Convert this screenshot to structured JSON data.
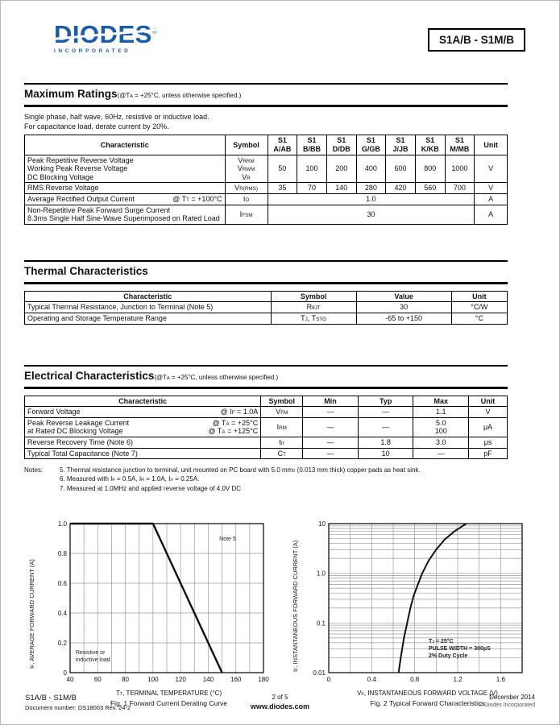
{
  "header": {
    "brand": "DIODES",
    "brand_sub": "INCORPORATED",
    "reg_mark": "®",
    "part_number": "S1A/B - S1M/B",
    "brand_color": "#1b5ca8"
  },
  "max_ratings": {
    "title": "Maximum Ratings",
    "subtitle_rich": [
      [
        "n",
        "(@T"
      ],
      [
        "s",
        "A"
      ],
      [
        "n",
        " = +25°C, unless otherwise specified.)"
      ]
    ],
    "intro_lines": [
      "Single phase, half wave, 60Hz, resistive or inductive load.",
      "For capacitance load, derate current by 20%."
    ],
    "headers": {
      "characteristic": "Characteristic",
      "symbol": "Symbol",
      "unit": "Unit",
      "parts": [
        {
          "top": "S1",
          "bot": "A/AB"
        },
        {
          "top": "S1",
          "bot": "B/BB"
        },
        {
          "top": "S1",
          "bot": "D/DB"
        },
        {
          "top": "S1",
          "bot": "G/GB"
        },
        {
          "top": "S1",
          "bot": "J/JB"
        },
        {
          "top": "S1",
          "bot": "K/KB"
        },
        {
          "top": "S1",
          "bot": "M/MB"
        }
      ]
    },
    "rows": [
      {
        "char_lines": [
          "Peak Repetitive Reverse Voltage",
          "Working Peak Reverse Voltage",
          "DC Blocking Voltage"
        ],
        "symbols_rich": [
          [
            [
              "n",
              "V"
            ],
            [
              "s",
              "RRM"
            ]
          ],
          [
            [
              "n",
              "V"
            ],
            [
              "s",
              "RWM"
            ]
          ],
          [
            [
              "n",
              "V"
            ],
            [
              "s",
              "R"
            ]
          ]
        ],
        "values": [
          "50",
          "100",
          "200",
          "400",
          "600",
          "800",
          "1000"
        ],
        "unit": "V"
      },
      {
        "char": "RMS Reverse Voltage",
        "symbol_rich": [
          [
            "n",
            "V"
          ],
          [
            "s",
            "R(RMS)"
          ]
        ],
        "values": [
          "35",
          "70",
          "140",
          "280",
          "420",
          "560",
          "700"
        ],
        "unit": "V"
      },
      {
        "char": "Average Rectified Output Current",
        "cond_rich": [
          [
            "n",
            "@ T"
          ],
          [
            "s",
            "T"
          ],
          [
            "n",
            " = +100°C"
          ]
        ],
        "symbol_rich": [
          [
            "n",
            "I"
          ],
          [
            "s",
            "O"
          ]
        ],
        "value_span": "1.0",
        "unit": "A"
      },
      {
        "char_lines": [
          "Non-Repetitive Peak Forward Surge Current",
          "8.3ms Single Half Sine-Wave Superimposed on Rated Load"
        ],
        "symbol_rich": [
          [
            "n",
            "I"
          ],
          [
            "s",
            "FSM"
          ]
        ],
        "value_span": "30",
        "unit": "A"
      }
    ]
  },
  "thermal": {
    "title": "Thermal Characteristics",
    "headers": [
      "Characteristic",
      "Symbol",
      "Value",
      "Unit"
    ],
    "rows": [
      {
        "char": "Typical Thermal Resistance, Junction to Terminal (Note 5)",
        "symbol_rich": [
          [
            "n",
            "R"
          ],
          [
            "s",
            "θJT"
          ]
        ],
        "value": "30",
        "unit": "°C/W"
      },
      {
        "char": "Operating and Storage Temperature Range",
        "symbol_rich": [
          [
            "n",
            "T"
          ],
          [
            "s",
            "J"
          ],
          [
            "n",
            ", T"
          ],
          [
            "s",
            "STG"
          ]
        ],
        "value": "-65 to +150",
        "unit": "°C"
      }
    ]
  },
  "electrical": {
    "title": "Electrical Characteristics",
    "subtitle_rich": [
      [
        "n",
        "(@T"
      ],
      [
        "s",
        "A"
      ],
      [
        "n",
        " = +25°C, unless otherwise specified.)"
      ]
    ],
    "headers": [
      "Characteristic",
      "Symbol",
      "Min",
      "Typ",
      "Max",
      "Unit"
    ],
    "rows": [
      {
        "char": "Forward Voltage",
        "cond_rich": [
          [
            "n",
            "@ I"
          ],
          [
            "s",
            "F"
          ],
          [
            "n",
            " = 1.0A"
          ]
        ],
        "symbol_rich": [
          [
            "n",
            "V"
          ],
          [
            "s",
            "FM"
          ]
        ],
        "min": "—",
        "typ": "—",
        "max": "1.1",
        "unit": "V"
      },
      {
        "char_lines": [
          "Peak Reverse Leakage Current",
          "at Rated DC Blocking Voltage"
        ],
        "cond_rich_lines": [
          [
            [
              "n",
              "@ T"
            ],
            [
              "s",
              "A"
            ],
            [
              "n",
              " = +25°C"
            ]
          ],
          [
            [
              "n",
              "@ T"
            ],
            [
              "s",
              "A"
            ],
            [
              "n",
              " = +125°C"
            ]
          ]
        ],
        "symbol_rich": [
          [
            "n",
            "I"
          ],
          [
            "s",
            "RM"
          ]
        ],
        "min": "—",
        "typ": "—",
        "max_lines": [
          "5.0",
          "100"
        ],
        "unit": "μA"
      },
      {
        "char": "Reverse Recovery Time (Note 6)",
        "symbol_rich": [
          [
            "n",
            "t"
          ],
          [
            "s",
            "rr"
          ]
        ],
        "min": "—",
        "typ": "1.8",
        "max": "3.0",
        "unit": "μs"
      },
      {
        "char": "Typical Total Capacitance (Note 7)",
        "symbol_rich": [
          [
            "n",
            "C"
          ],
          [
            "s",
            "T"
          ]
        ],
        "min": "—",
        "typ": "10",
        "max": "—",
        "unit": "pF"
      }
    ],
    "notes_label": "Notes:",
    "notes_rich": [
      [
        [
          "n",
          "5. Thermal resistance junction to terminal, unit mounted on PC board with 5.0 mm"
        ],
        [
          "u",
          "2"
        ],
        [
          "n",
          " (0.013 mm thick) copper pads as heat sink."
        ]
      ],
      [
        [
          "n",
          "6. Measured with I"
        ],
        [
          "s",
          "F"
        ],
        [
          "n",
          " = 0.5A, I"
        ],
        [
          "s",
          "R"
        ],
        [
          "n",
          " = 1.0A, I"
        ],
        [
          "s",
          "rr"
        ],
        [
          "n",
          " = 0.25A."
        ]
      ],
      [
        [
          "n",
          "7. Measured at 1.0MHz and applied reverse voltage of 4.0V DC"
        ]
      ]
    ]
  },
  "chart_data": [
    {
      "type": "line",
      "caption": "Fig. 1  Forward Current Derating Curve",
      "xlabel_rich": [
        [
          "n",
          "T"
        ],
        [
          "s",
          "T"
        ],
        [
          "n",
          ", TERMINAL TEMPERATURE (°C)"
        ]
      ],
      "ylabel_rich": [
        [
          "n",
          "I"
        ],
        [
          "s",
          "F"
        ],
        [
          "n",
          ", AVERAGE FORWARD CURRENT (A)"
        ]
      ],
      "xlim": [
        40,
        180
      ],
      "ylim": [
        0,
        1
      ],
      "ylog": false,
      "x_grid_step": 10,
      "y_grid_step": 0.2,
      "xticks": [
        {
          "v": 40,
          "l": "40"
        },
        {
          "v": 60,
          "l": "60"
        },
        {
          "v": 80,
          "l": "80"
        },
        {
          "v": 100,
          "l": "100"
        },
        {
          "v": 120,
          "l": "120"
        },
        {
          "v": 140,
          "l": "140"
        },
        {
          "v": 160,
          "l": "160"
        },
        {
          "v": 180,
          "l": "180"
        }
      ],
      "yticks": [
        {
          "v": 0,
          "l": "0"
        },
        {
          "v": 0.2,
          "l": "0.2"
        },
        {
          "v": 0.4,
          "l": "0.4"
        },
        {
          "v": 0.6,
          "l": "0.6"
        },
        {
          "v": 0.8,
          "l": "0.8"
        },
        {
          "v": 1,
          "l": "1.0"
        }
      ],
      "series": [
        {
          "name": "derating-curve",
          "points": [
            [
              40,
              1
            ],
            [
              100,
              1
            ],
            [
              150,
              0
            ]
          ]
        }
      ],
      "annotations": [
        {
          "x": 148,
          "y": 0.92,
          "bold": false,
          "lines_rich": [
            [
              [
                "n",
                "Note 5"
              ]
            ]
          ]
        },
        {
          "x": 44,
          "y": 0.155,
          "bold": false,
          "lines_rich": [
            [
              [
                "n",
                "Resistive or"
              ]
            ],
            [
              [
                "n",
                "inductive load"
              ]
            ]
          ]
        }
      ]
    },
    {
      "type": "line",
      "caption": "Fig. 2  Typical Forward Characteristics",
      "xlabel_rich": [
        [
          "n",
          "V"
        ],
        [
          "s",
          "F"
        ],
        [
          "n",
          ", INSTANTANEOUS FORWARD VOLTAGE (V)"
        ]
      ],
      "ylabel_rich": [
        [
          "n",
          "I"
        ],
        [
          "s",
          "F"
        ],
        [
          "n",
          ", INSTANTANEOUS FORWARD CURRENT (A)"
        ]
      ],
      "xlim": [
        0,
        1.8
      ],
      "ylim": [
        0.01,
        10
      ],
      "ylog": true,
      "x_grid_step": 0.2,
      "xticks": [
        {
          "v": 0,
          "l": "0"
        },
        {
          "v": 0.4,
          "l": "0.4"
        },
        {
          "v": 0.8,
          "l": "0.8"
        },
        {
          "v": 1.2,
          "l": "1.2"
        },
        {
          "v": 1.6,
          "l": "1.6"
        }
      ],
      "yticks": [
        {
          "v": 0.01,
          "l": "0.01"
        },
        {
          "v": 0.1,
          "l": "0.1"
        },
        {
          "v": 1,
          "l": "1.0"
        },
        {
          "v": 10,
          "l": "10"
        }
      ],
      "series": [
        {
          "name": "forward-characteristic",
          "points": [
            [
              0.65,
              0.01
            ],
            [
              0.67,
              0.02
            ],
            [
              0.7,
              0.05
            ],
            [
              0.73,
              0.1
            ],
            [
              0.76,
              0.2
            ],
            [
              0.79,
              0.35
            ],
            [
              0.83,
              0.6
            ],
            [
              0.87,
              1.0
            ],
            [
              0.93,
              1.8
            ],
            [
              1.0,
              3.0
            ],
            [
              1.08,
              4.8
            ],
            [
              1.17,
              7.0
            ],
            [
              1.28,
              10
            ]
          ]
        }
      ],
      "annotations": [
        {
          "x": 0.93,
          "y": 0.05,
          "bold": true,
          "lines_rich": [
            [
              [
                "n",
                "T"
              ],
              [
                "s",
                "J"
              ],
              [
                "n",
                " = 25°C"
              ]
            ],
            [
              [
                "n",
                "PULSE WIDTH = 300μS"
              ]
            ],
            [
              [
                "n",
                "2% Duty Cycle"
              ]
            ]
          ]
        }
      ]
    }
  ],
  "footer": {
    "left_line1": "S1A/B - S1M/B",
    "left_line2": "Document number: DS18003 Rev. 24-2",
    "center_line1": "2 of 5",
    "center_line2": "www.diodes.com",
    "right_line1": "December 2014",
    "right_line2": "© Diodes Incorporated"
  }
}
